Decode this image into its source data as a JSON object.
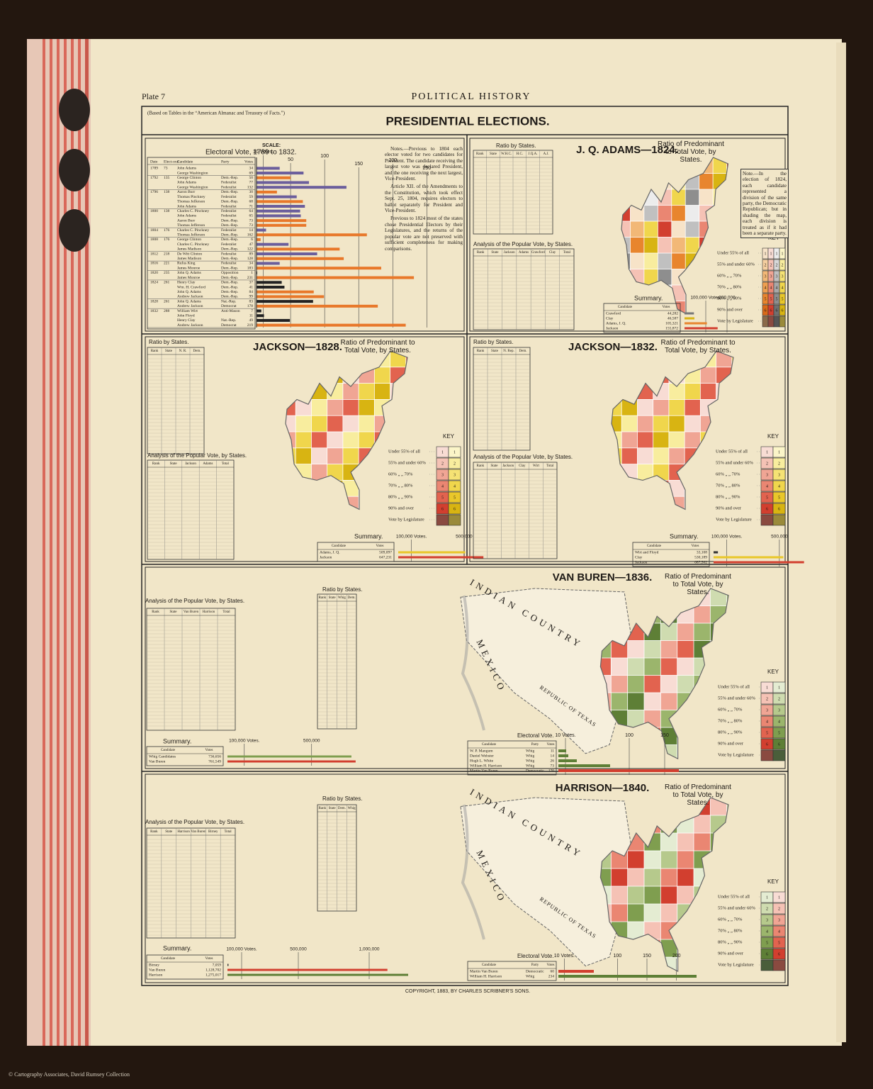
{
  "header": {
    "plate": "Plate 7",
    "running_title": "POLITICAL HISTORY"
  },
  "title": {
    "text": "PRESIDENTIAL ELECTIONS.",
    "source_note": "(Based on Tables in the “American Almanac and Treasury of Facts.”)"
  },
  "key_title": "KEY",
  "key_levels": [
    "Under 55% of all",
    "55% and under 60%",
    "60% „ „ 70%",
    "70% „ „ 80%",
    "80% „ „ 90%",
    "90% and over",
    "Vote by Legislature"
  ],
  "key_numbers": [
    "1",
    "2",
    "3",
    "4",
    "5",
    "6"
  ],
  "electoral_1789_1832": {
    "title": "Electoral Vote, 1789 to 1832.",
    "columns": [
      "Date",
      "Elect-oral",
      "Candidate",
      "Party",
      "Votes"
    ],
    "scale_label": "SCALE:",
    "xlim": [
      0,
      260
    ],
    "xticks": [
      {
        "value": 10,
        "label": "10 Votes."
      },
      50,
      100,
      150,
      200,
      250
    ],
    "elections": [
      {
        "year": "1789",
        "electors": "73",
        "candidates": [
          {
            "name": "John Adams",
            "party": "",
            "votes": 34,
            "color": "#6b5e9c"
          },
          {
            "name": "George Washington",
            "party": "",
            "votes": 69,
            "color": "#6b5e9c"
          }
        ]
      },
      {
        "year": "1792",
        "electors": "135",
        "candidates": [
          {
            "name": "George Clinton",
            "party": "Dem.-Rep.",
            "votes": 50,
            "color": "#e8782a"
          },
          {
            "name": "John Adams",
            "party": "Federalist",
            "votes": 77,
            "color": "#6b5e9c"
          },
          {
            "name": "George Washington",
            "party": "Federalist",
            "votes": 132,
            "color": "#6b5e9c"
          }
        ]
      },
      {
        "year": "1796",
        "electors": "138",
        "candidates": [
          {
            "name": "Aaron Burr",
            "party": "Dem.-Rep.",
            "votes": 30,
            "color": "#e8782a"
          },
          {
            "name": "Thomas Pinckney",
            "party": "Federalist",
            "votes": 59,
            "color": "#6b5e9c"
          },
          {
            "name": "Thomas Jefferson",
            "party": "Dem.-Rep.",
            "votes": 68,
            "color": "#e8782a"
          },
          {
            "name": "John Adams",
            "party": "Federalist",
            "votes": 71,
            "color": "#6b5e9c"
          }
        ]
      },
      {
        "year": "1800",
        "electors": "138",
        "candidates": [
          {
            "name": "Charles C. Pinckney",
            "party": "Federalist",
            "votes": 64,
            "color": "#6b5e9c"
          },
          {
            "name": "John Adams",
            "party": "Federalist",
            "votes": 65,
            "color": "#6b5e9c"
          },
          {
            "name": "Aaron Burr",
            "party": "Dem.-Rep.",
            "votes": 73,
            "color": "#e8782a"
          },
          {
            "name": "Thomas Jefferson",
            "party": "Dem.-Rep.",
            "votes": 73,
            "color": "#e8782a"
          }
        ]
      },
      {
        "year": "1804",
        "electors": "176",
        "candidates": [
          {
            "name": "Charles C. Pinckney",
            "party": "Federalist",
            "votes": 14,
            "color": "#6b5e9c"
          },
          {
            "name": "Thomas Jefferson",
            "party": "Dem.-Rep.",
            "votes": 162,
            "color": "#e8782a"
          }
        ]
      },
      {
        "year": "1808",
        "electors": "176",
        "candidates": [
          {
            "name": "George Clinton",
            "party": "Dem.-Rep.",
            "votes": 6,
            "color": "#e8782a"
          },
          {
            "name": "Charles C. Pinckney",
            "party": "Federalist",
            "votes": 47,
            "color": "#6b5e9c"
          },
          {
            "name": "James Madison",
            "party": "Dem.-Rep.",
            "votes": 122,
            "color": "#e8782a"
          }
        ]
      },
      {
        "year": "1812",
        "electors": "218",
        "candidates": [
          {
            "name": "De Witt Clinton",
            "party": "Federalist",
            "votes": 89,
            "color": "#6b5e9c"
          },
          {
            "name": "James Madison",
            "party": "Dem.-Rep.",
            "votes": 128,
            "color": "#e8782a"
          }
        ]
      },
      {
        "year": "1816",
        "electors": "221",
        "candidates": [
          {
            "name": "Rufus King",
            "party": "Federalist",
            "votes": 34,
            "color": "#6b5e9c"
          },
          {
            "name": "James Monroe",
            "party": "Dem.-Rep.",
            "votes": 183,
            "color": "#e8782a"
          }
        ]
      },
      {
        "year": "1820",
        "electors": "235",
        "candidates": [
          {
            "name": "John Q. Adams",
            "party": "Opposition",
            "votes": 1,
            "color": "#222222"
          },
          {
            "name": "James Monroe",
            "party": "Dem.-Rep.",
            "votes": 231,
            "color": "#e8782a"
          }
        ]
      },
      {
        "year": "1824",
        "electors": "261",
        "candidates": [
          {
            "name": "Henry Clay",
            "party": "Dem.-Rep.",
            "votes": 37,
            "color": "#222222"
          },
          {
            "name": "Wm. H. Crawford",
            "party": "Dem.-Rep.",
            "votes": 41,
            "color": "#222222"
          },
          {
            "name": "John Q. Adams",
            "party": "Dem.-Rep.",
            "votes": 84,
            "color": "#e8782a"
          },
          {
            "name": "Andrew Jackson",
            "party": "Dem.-Rep.",
            "votes": 99,
            "color": "#e8782a"
          }
        ]
      },
      {
        "year": "1828",
        "electors": "261",
        "candidates": [
          {
            "name": "John Q. Adams",
            "party": "Nat.-Rep.",
            "votes": 83,
            "color": "#222222"
          },
          {
            "name": "Andrew Jackson",
            "party": "Democrat",
            "votes": 178,
            "color": "#e8782a"
          }
        ]
      },
      {
        "year": "1832",
        "electors": "288",
        "candidates": [
          {
            "name": "William Wirt",
            "party": "Anti-Mason",
            "votes": 7,
            "color": "#222222"
          },
          {
            "name": "John Floyd",
            "party": "",
            "votes": 11,
            "color": "#222222"
          },
          {
            "name": "Henry Clay",
            "party": "Nat.-Rep.",
            "votes": 49,
            "color": "#222222"
          },
          {
            "name": "Andrew Jackson",
            "party": "Democrat",
            "votes": 219,
            "color": "#e8782a"
          }
        ]
      }
    ]
  },
  "notes": [
    "Notes.—Previous to 1804 each elector voted for two candidates for President. The candidate receiving the largest vote was declared President, and the one receiving the next largest, Vice-President.",
    "Article XII. of the Amendments to the Constitution, which took effect Sept. 25, 1804, requires electors to ballot separately for President and Vice-President.",
    "Previous to 1824 most of the states chose Presidential Electors by their Legislatures, and the returns of the popular vote are not preserved with sufficient completeness for making comparisons."
  ],
  "sections": [
    {
      "title": "J. Q. ADAMS—1824.",
      "ratio_title": "Ratio by States.",
      "ratio_columns": [
        "Rank",
        "State",
        "W.H.C.",
        "H.C.",
        "J.Q.A.",
        "A.J."
      ],
      "ratio_map_title": "Ratio of Predominant to Total Vote, by States.",
      "popular_title": "Analysis of the Popular Vote, by States.",
      "popular_columns": [
        "Rank",
        "State",
        "Jackson",
        "Adams",
        "Crawford",
        "Clay",
        "Total"
      ],
      "note": "Note.—In the election of 1824, each candidate represented a division of the same party, the Democratic Republican; but in shading the map, each division is treated as if it had been a separate party.",
      "key_colors": [
        [
          "#f7e3c8",
          "#f5cfa0",
          "#f2b877",
          "#ee9f50",
          "#e8852e",
          "#d96a1a",
          "#8a6a4a"
        ],
        [
          "#f8dcd4",
          "#f5c2b5",
          "#f0a594",
          "#ea8672",
          "#e2634f",
          "#d23f2f",
          "#8a4a40"
        ],
        [
          "#ececec",
          "#d8d8d8",
          "#c0c0c0",
          "#a8a8a8",
          "#8e8e8e",
          "#707070",
          "#555555"
        ],
        [
          "#fbf5c8",
          "#f8ed9e",
          "#f5e274",
          "#f0d64c",
          "#e9c72a",
          "#d8b412",
          "#9a8a3a"
        ]
      ],
      "summary_title": "Summary.",
      "summary": {
        "columns": [
          "Candidate",
          "Votes"
        ],
        "candidates": [
          "Crawford",
          "Clay",
          "Adams, J. Q.",
          "Jackson"
        ],
        "values": [
          44282,
          46587,
          105321,
          155872
        ],
        "value_labels": [
          "44,282",
          "46,587",
          "105,321",
          "155,872"
        ],
        "colors": [
          "#777777",
          "#d8b412",
          "#e8852e",
          "#d23f2f"
        ],
        "xlim": [
          0,
          200000
        ],
        "xticks": [
          {
            "value": 100000,
            "label": "100,000 Votes."
          },
          {
            "value": 200000,
            "label": "200,000"
          }
        ]
      }
    },
    {
      "title": "JACKSON—1828.",
      "ratio_title": "Ratio by States.",
      "ratio_columns": [
        "Rank",
        "State",
        "N. R.",
        "Dem."
      ],
      "ratio_map_title": "Ratio of Predominant to Total Vote, by States.",
      "popular_title": "Analysis of the Popular Vote, by States.",
      "popular_columns": [
        "Rank",
        "State",
        "Jackson",
        "Adams",
        "Total"
      ],
      "key_colors": [
        [
          "#f8dcd4",
          "#f5c2b5",
          "#f0a594",
          "#ea8672",
          "#e2634f",
          "#d23f2f",
          "#8a4a40"
        ],
        [
          "#fbf5c8",
          "#f8ed9e",
          "#f5e274",
          "#f0d64c",
          "#e9c72a",
          "#d8b412",
          "#9a8a3a"
        ]
      ],
      "summary_title": "Summary.",
      "summary": {
        "columns": [
          "Candidate",
          "Votes"
        ],
        "candidates": [
          "Adams, J. Q.",
          "Jackson"
        ],
        "values": [
          509097,
          647231
        ],
        "value_labels": [
          "509,097",
          "647,231"
        ],
        "colors": [
          "#e9c72a",
          "#d23f2f"
        ],
        "xlim": [
          0,
          700000
        ],
        "xticks": [
          {
            "value": 100000,
            "label": "100,000 Votes."
          },
          {
            "value": 500000,
            "label": "500,000"
          }
        ]
      }
    },
    {
      "title": "JACKSON—1832.",
      "ratio_title": "Ratio by States.",
      "ratio_columns": [
        "Rank",
        "State",
        "N. Rep.",
        "Dem."
      ],
      "ratio_map_title": "Ratio of Predominant to Total Vote, by States.",
      "popular_title": "Analysis of the Popular Vote, by States.",
      "popular_columns": [
        "Rank",
        "State",
        "Jackson",
        "Clay",
        "Wirt",
        "Total"
      ],
      "key_colors": [
        [
          "#f8dcd4",
          "#f5c2b5",
          "#f0a594",
          "#ea8672",
          "#e2634f",
          "#d23f2f",
          "#8a4a40"
        ],
        [
          "#fbf5c8",
          "#f8ed9e",
          "#f5e274",
          "#f0d64c",
          "#e9c72a",
          "#d8b412",
          "#9a8a3a"
        ]
      ],
      "summary_title": "Summary.",
      "summary": {
        "columns": [
          "Candidate",
          "Votes"
        ],
        "candidates": [
          "Wirt and Floyd",
          "Clay",
          "Jackson"
        ],
        "values": [
          33108,
          530189,
          687502
        ],
        "value_labels": [
          "33,108",
          "530,189",
          "687,502"
        ],
        "colors": [
          "#333333",
          "#e9c72a",
          "#d23f2f"
        ],
        "xlim": [
          0,
          700000
        ],
        "xticks": [
          {
            "value": 100000,
            "label": "100,000 Votes."
          },
          {
            "value": 500000,
            "label": "500,000"
          }
        ]
      }
    },
    {
      "title": "VAN BUREN—1836.",
      "ratio_title": "Ratio by States.",
      "ratio_columns": [
        "Rank",
        "State",
        "Whig",
        "Dem."
      ],
      "ratio_map_title": "Ratio of Predominant to Total Vote, by States.",
      "popular_title": "Analysis of the Popular Vote, by States.",
      "popular_columns": [
        "Rank",
        "State",
        "Van Buren",
        "Harrison",
        "Total"
      ],
      "map_labels": [
        "INDIAN COUNTRY",
        "MEXICO",
        "REPUBLIC OF TEXAS"
      ],
      "key_colors": [
        [
          "#f8dcd4",
          "#f5c2b5",
          "#f0a594",
          "#ea8672",
          "#e2634f",
          "#d23f2f",
          "#8a4a40"
        ],
        [
          "#e4ecd2",
          "#cfdcb0",
          "#b6c98c",
          "#9bb56c",
          "#7f9e4f",
          "#5e7f36",
          "#4a5e3a"
        ]
      ],
      "summary_title": "Summary.",
      "summary": {
        "columns": [
          "Candidate",
          "Votes"
        ],
        "candidates": [
          "Whig Candidates",
          "Van Buren"
        ],
        "values": [
          736656,
          761549
        ],
        "value_labels": [
          "736,656",
          "761,549"
        ],
        "colors": [
          "#7f9e4f",
          "#d23f2f"
        ],
        "xlim": [
          0,
          800000
        ],
        "xticks": [
          {
            "value": 100000,
            "label": "100,000 Votes."
          },
          {
            "value": 500000,
            "label": "500,000"
          }
        ]
      },
      "electoral": {
        "title": "Electoral Vote.",
        "columns": [
          "Candidate",
          "Party",
          "Votes"
        ],
        "candidates": [
          "W. P. Mangum",
          "Daniel Webster",
          "Hugh L. White",
          "William H. Harrison",
          "Martin Van Buren"
        ],
        "parties": [
          "Whig",
          "Whig",
          "Whig",
          "Whig",
          "Democratic"
        ],
        "values": [
          11,
          14,
          26,
          73,
          170
        ],
        "colors": [
          "#5e7f36",
          "#5e7f36",
          "#5e7f36",
          "#5e7f36",
          "#d23f2f"
        ],
        "xlim": [
          0,
          200
        ],
        "xticks": [
          {
            "value": 10,
            "label": "10 Votes."
          },
          100,
          150
        ]
      }
    },
    {
      "title": "HARRISON—1840.",
      "ratio_title": "Ratio by States.",
      "ratio_columns": [
        "Rank",
        "State",
        "Dem.",
        "Whig"
      ],
      "ratio_map_title": "Ratio of Predominant to Total Vote, by States.",
      "popular_title": "Analysis of the Popular Vote, by States.",
      "popular_columns": [
        "Rank",
        "State",
        "Harrison",
        "Van Buren",
        "Birney",
        "Total"
      ],
      "map_labels": [
        "INDIAN COUNTRY",
        "MEXICO",
        "REPUBLIC OF TEXAS"
      ],
      "key_colors": [
        [
          "#e4ecd2",
          "#cfdcb0",
          "#b6c98c",
          "#9bb56c",
          "#7f9e4f",
          "#5e7f36",
          "#4a5e3a"
        ],
        [
          "#f8dcd4",
          "#f5c2b5",
          "#f0a594",
          "#ea8672",
          "#e2634f",
          "#d23f2f",
          "#8a4a40"
        ]
      ],
      "summary_title": "Summary.",
      "summary": {
        "columns": [
          "Candidate",
          "Votes"
        ],
        "candidates": [
          "Birney",
          "Van Buren",
          "Harrison"
        ],
        "values": [
          7059,
          1128702,
          1275017
        ],
        "value_labels": [
          "7,059",
          "1,128,702",
          "1,275,017"
        ],
        "colors": [
          "#333333",
          "#d23f2f",
          "#5e7f36"
        ],
        "xlim": [
          0,
          1300000
        ],
        "xticks": [
          {
            "value": 100000,
            "label": "100,000 Votes."
          },
          {
            "value": 500000,
            "label": "500,000"
          },
          {
            "value": 1000000,
            "label": "1,000,000"
          }
        ]
      },
      "electoral": {
        "title": "Electoral Vote.",
        "columns": [
          "Candidate",
          "Party",
          "Votes"
        ],
        "candidates": [
          "Martin Van Buren",
          "William H. Harrison"
        ],
        "parties": [
          "Democratic",
          "Whig"
        ],
        "values": [
          60,
          234
        ],
        "colors": [
          "#d23f2f",
          "#5e7f36"
        ],
        "xlim": [
          0,
          240
        ],
        "xticks": [
          {
            "value": 10,
            "label": "10 Votes."
          },
          100,
          150,
          200
        ]
      }
    }
  ],
  "copyright": "COPYRIGHT, 1883, BY CHARLES SCRIBNER'S SONS.",
  "credit": "© Cartography Associates, David Rumsey Collection"
}
